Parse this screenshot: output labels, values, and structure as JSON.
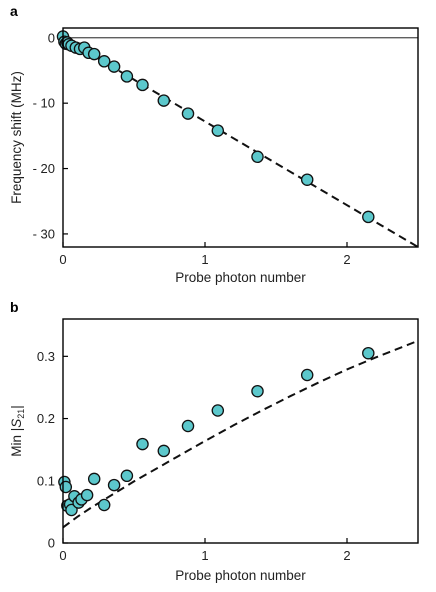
{
  "chart_data": [
    {
      "type": "scatter",
      "panel": "a",
      "xlabel": "Probe photon number",
      "ylabel": "Frequency shift (MHz)",
      "xlim": [
        0,
        2.5
      ],
      "ylim": [
        -32,
        1.5
      ],
      "xticks": [
        0,
        1,
        2
      ],
      "xtick_labels": [
        "0",
        "1",
        "2"
      ],
      "yticks": [
        0,
        -10,
        -20,
        -30
      ],
      "ytick_labels": [
        "0",
        "- 10",
        "- 20",
        "- 30"
      ],
      "zero_line": true,
      "marker_color": "#5cc8cc",
      "series": [
        {
          "x": [
            0.0,
            0.01,
            0.02,
            0.03,
            0.04,
            0.06,
            0.09,
            0.12,
            0.15,
            0.18,
            0.22,
            0.29,
            0.36,
            0.45,
            0.56,
            0.71,
            0.88,
            1.09,
            1.37,
            1.72,
            2.15
          ],
          "y": [
            0.2,
            -0.6,
            -0.9,
            -0.7,
            -1.0,
            -1.2,
            -1.5,
            -1.7,
            -1.5,
            -2.3,
            -2.5,
            -3.6,
            -4.4,
            -5.9,
            -7.2,
            -9.6,
            -11.6,
            -14.2,
            -18.2,
            -21.7,
            -27.4
          ]
        }
      ],
      "fit": {
        "style": "dashed",
        "x": [
          0,
          2.5
        ],
        "y": [
          0,
          -32
        ]
      }
    },
    {
      "type": "scatter",
      "panel": "b",
      "xlabel": "Probe photon number",
      "ylabel": "Min |S21|",
      "ylabel_parts": {
        "prefix": "Min |",
        "var": "S",
        "sub": "21",
        "suffix": "|"
      },
      "xlim": [
        0,
        2.5
      ],
      "ylim": [
        0,
        0.36
      ],
      "xticks": [
        0,
        1,
        2
      ],
      "xtick_labels": [
        "0",
        "1",
        "2"
      ],
      "yticks": [
        0,
        0.1,
        0.2,
        0.3
      ],
      "ytick_labels": [
        "0",
        "0.1",
        "0.2",
        "0.3"
      ],
      "marker_color": "#5cc8cc",
      "series": [
        {
          "x": [
            0.01,
            0.02,
            0.03,
            0.05,
            0.06,
            0.08,
            0.11,
            0.13,
            0.17,
            0.22,
            0.29,
            0.36,
            0.45,
            0.56,
            0.71,
            0.88,
            1.09,
            1.37,
            1.72,
            2.15
          ],
          "y": [
            0.098,
            0.09,
            0.06,
            0.062,
            0.053,
            0.075,
            0.065,
            0.07,
            0.077,
            0.103,
            0.061,
            0.093,
            0.108,
            0.159,
            0.148,
            0.188,
            0.213,
            0.244,
            0.27,
            0.305
          ]
        }
      ],
      "fit": {
        "style": "dashed",
        "x": [
          0,
          0.1,
          0.2,
          0.3,
          0.4,
          0.5,
          0.6,
          0.7,
          0.8,
          0.9,
          1.0,
          1.2,
          1.4,
          1.6,
          1.8,
          2.0,
          2.2,
          2.5
        ],
        "y": [
          0.025,
          0.042,
          0.057,
          0.071,
          0.085,
          0.099,
          0.112,
          0.125,
          0.138,
          0.151,
          0.164,
          0.189,
          0.213,
          0.236,
          0.258,
          0.279,
          0.298,
          0.325
        ]
      }
    }
  ]
}
